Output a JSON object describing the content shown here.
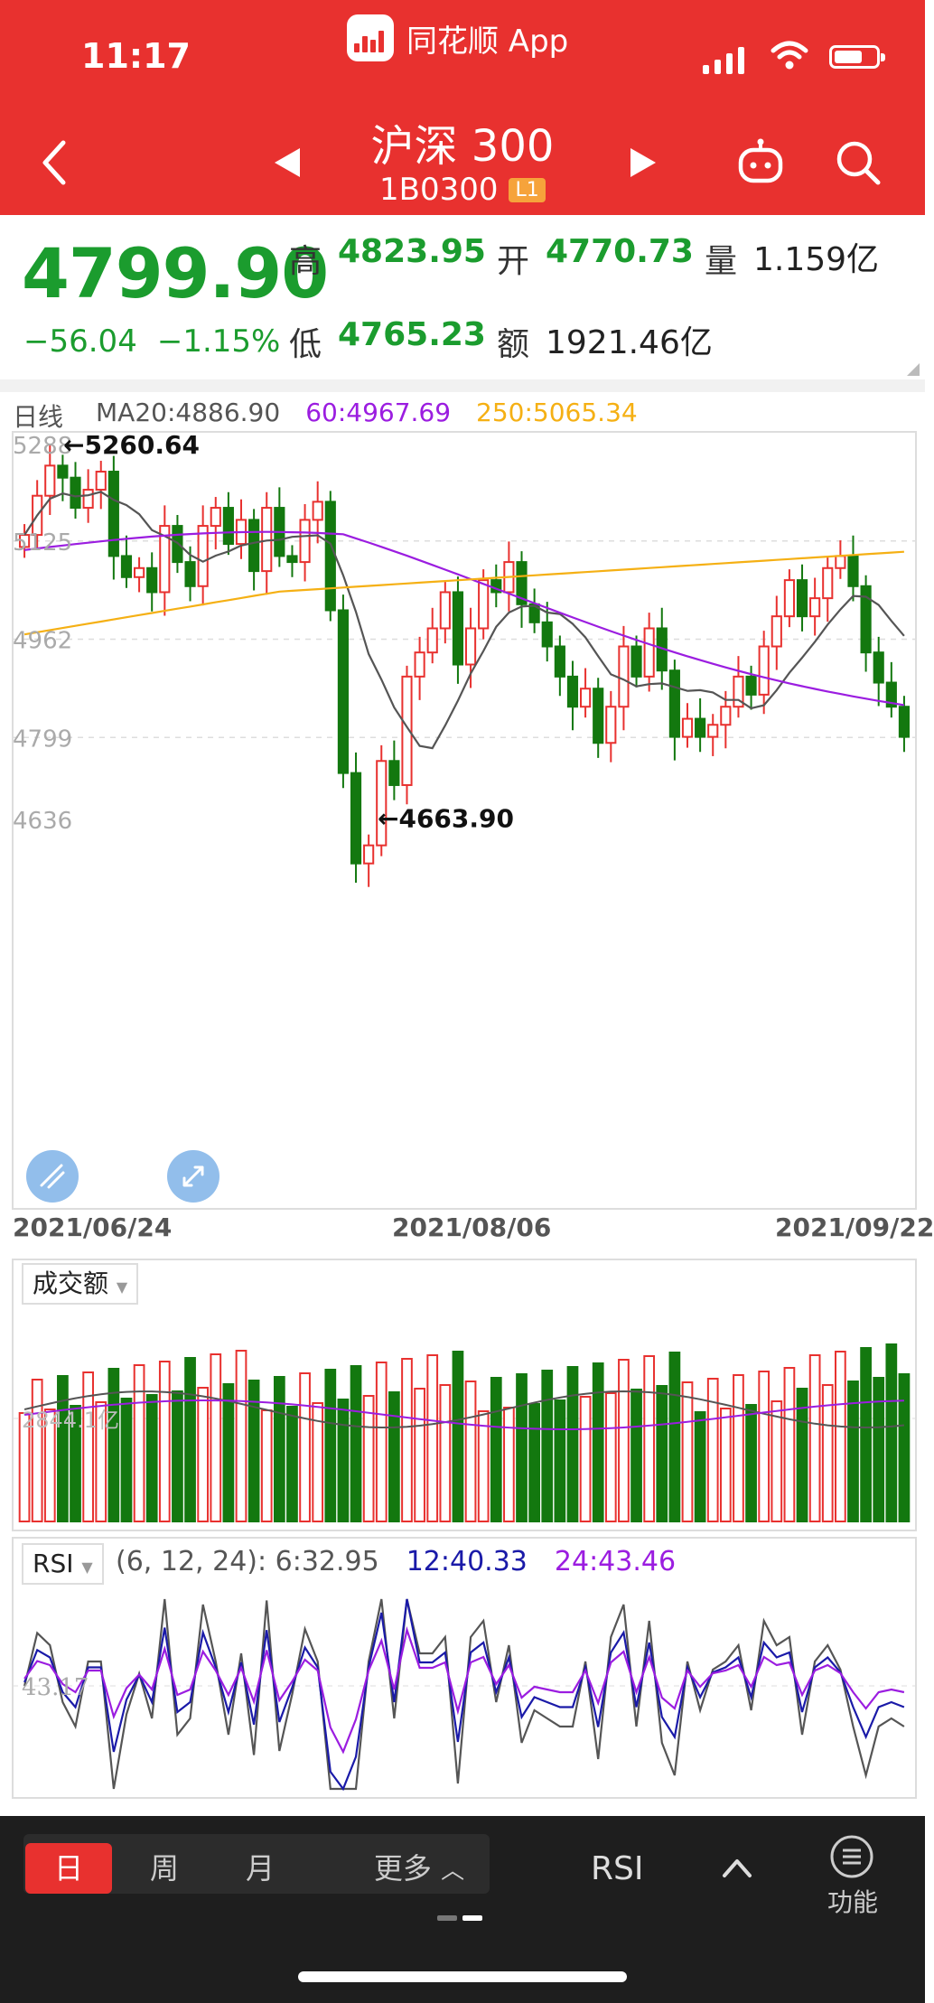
{
  "status": {
    "time": "11:17",
    "app_name": "同花顺 App"
  },
  "header": {
    "title": "沪深 300",
    "code": "1B0300",
    "level_badge": "L1"
  },
  "quote": {
    "price": "4799.90",
    "change": "−56.04",
    "change_pct": "−1.15%",
    "high_label": "高",
    "high": "4823.95",
    "open_label": "开",
    "open": "4770.73",
    "volume_label": "量",
    "volume": "1.159亿",
    "low_label": "低",
    "low": "4765.23",
    "amount_label": "额",
    "amount": "1921.46亿"
  },
  "kline": {
    "period_label": "日线",
    "ma20": "MA20:4886.90",
    "ma60": "60:4967.69",
    "ma250": "250:5065.34",
    "y_ticks": [
      "5288",
      "5125",
      "4962",
      "4799",
      "4636"
    ],
    "high_mark": "←5260.64",
    "low_mark": "←4663.90",
    "dates": [
      "2021/06/24",
      "2021/08/06",
      "2021/09/22"
    ],
    "colors": {
      "up": "#e8312f",
      "down": "#13780f",
      "ma20": "#555555",
      "ma60": "#9b1de0",
      "ma250": "#f5b014"
    }
  },
  "volume_panel": {
    "label": "成交额",
    "axis_value": "2844.1亿"
  },
  "rsi_panel": {
    "label": "RSI",
    "params": "(6, 12, 24): 6:32.95",
    "rsi12": "12:40.33",
    "rsi24": "24:43.46",
    "level": "43.17",
    "colors": {
      "rsi6": "#555555",
      "rsi12": "#1a1aa8",
      "rsi24": "#9b1de0"
    }
  },
  "bottom_bar": {
    "periods": [
      "日",
      "周",
      "月"
    ],
    "active_period": "日",
    "more_label": "更多",
    "indicator": "RSI",
    "function_label": "功能"
  }
}
